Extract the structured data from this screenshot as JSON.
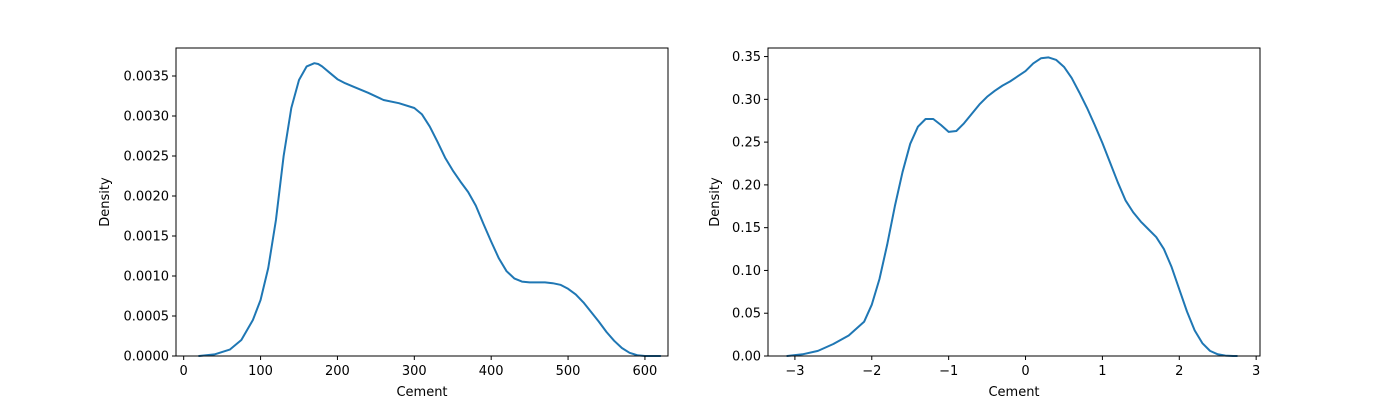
{
  "chart_data": [
    {
      "type": "line",
      "title": "",
      "xlabel": "Cement",
      "ylabel": "Density",
      "xlim": [
        -10,
        630
      ],
      "ylim": [
        0,
        0.00385
      ],
      "xticks": [
        0,
        100,
        200,
        300,
        400,
        500,
        600
      ],
      "xtick_labels": [
        "0",
        "100",
        "200",
        "300",
        "400",
        "500",
        "600"
      ],
      "yticks": [
        0,
        0.0005,
        0.001,
        0.0015,
        0.002,
        0.0025,
        0.003,
        0.0035
      ],
      "ytick_labels": [
        "0.0000",
        "0.0005",
        "0.0010",
        "0.0015",
        "0.0020",
        "0.0025",
        "0.0030",
        "0.0035"
      ],
      "grid": false,
      "color": "#1f77b4",
      "series": [
        {
          "x": [
            20,
            40,
            60,
            75,
            90,
            100,
            110,
            120,
            130,
            140,
            150,
            160,
            170,
            175,
            180,
            190,
            200,
            210,
            220,
            240,
            260,
            280,
            300,
            310,
            320,
            330,
            340,
            350,
            360,
            370,
            380,
            390,
            400,
            410,
            420,
            430,
            440,
            450,
            460,
            470,
            480,
            490,
            500,
            510,
            520,
            530,
            540,
            550,
            560,
            570,
            580,
            590,
            600,
            610,
            620
          ],
          "y": [
            0.0,
            2e-05,
            8e-05,
            0.0002,
            0.00045,
            0.0007,
            0.0011,
            0.0017,
            0.0025,
            0.0031,
            0.00345,
            0.00362,
            0.00366,
            0.00365,
            0.00362,
            0.00354,
            0.00346,
            0.00341,
            0.00337,
            0.00329,
            0.0032,
            0.00316,
            0.0031,
            0.00302,
            0.00287,
            0.00268,
            0.00248,
            0.00232,
            0.00218,
            0.00205,
            0.00188,
            0.00165,
            0.00143,
            0.00122,
            0.00106,
            0.00097,
            0.00093,
            0.00092,
            0.00092,
            0.00092,
            0.00091,
            0.00089,
            0.00084,
            0.00077,
            0.00067,
            0.00055,
            0.00043,
            0.0003,
            0.00019,
            0.0001,
            4e-05,
            1e-05,
            0.0,
            0.0,
            0.0
          ]
        }
      ]
    },
    {
      "type": "line",
      "title": "",
      "xlabel": "Cement",
      "ylabel": "Density",
      "xlim": [
        -3.35,
        3.05
      ],
      "ylim": [
        0,
        0.36
      ],
      "xticks": [
        -3,
        -2,
        -1,
        0,
        1,
        2,
        3
      ],
      "xtick_labels": [
        "−3",
        "−2",
        "−1",
        "0",
        "1",
        "2",
        "3"
      ],
      "yticks": [
        0,
        0.05,
        0.1,
        0.15,
        0.2,
        0.25,
        0.3,
        0.35
      ],
      "ytick_labels": [
        "0.00",
        "0.05",
        "0.10",
        "0.15",
        "0.20",
        "0.25",
        "0.30",
        "0.35"
      ],
      "grid": false,
      "color": "#1f77b4",
      "series": [
        {
          "x": [
            -3.1,
            -2.9,
            -2.7,
            -2.5,
            -2.3,
            -2.1,
            -2.0,
            -1.9,
            -1.8,
            -1.7,
            -1.6,
            -1.5,
            -1.4,
            -1.3,
            -1.2,
            -1.1,
            -1.0,
            -0.9,
            -0.8,
            -0.7,
            -0.6,
            -0.5,
            -0.4,
            -0.3,
            -0.2,
            -0.1,
            0.0,
            0.1,
            0.2,
            0.3,
            0.4,
            0.5,
            0.6,
            0.7,
            0.8,
            0.9,
            1.0,
            1.1,
            1.2,
            1.3,
            1.4,
            1.5,
            1.6,
            1.7,
            1.8,
            1.9,
            2.0,
            2.1,
            2.2,
            2.3,
            2.4,
            2.5,
            2.6,
            2.7,
            2.75
          ],
          "y": [
            0.0,
            0.002,
            0.006,
            0.014,
            0.024,
            0.04,
            0.06,
            0.09,
            0.13,
            0.175,
            0.215,
            0.248,
            0.268,
            0.277,
            0.277,
            0.27,
            0.262,
            0.263,
            0.272,
            0.283,
            0.294,
            0.303,
            0.31,
            0.316,
            0.321,
            0.327,
            0.333,
            0.342,
            0.348,
            0.349,
            0.346,
            0.338,
            0.325,
            0.308,
            0.29,
            0.27,
            0.249,
            0.226,
            0.203,
            0.182,
            0.168,
            0.157,
            0.148,
            0.139,
            0.125,
            0.104,
            0.078,
            0.052,
            0.03,
            0.015,
            0.006,
            0.002,
            0.0005,
            0.0,
            0.0
          ]
        }
      ]
    }
  ]
}
